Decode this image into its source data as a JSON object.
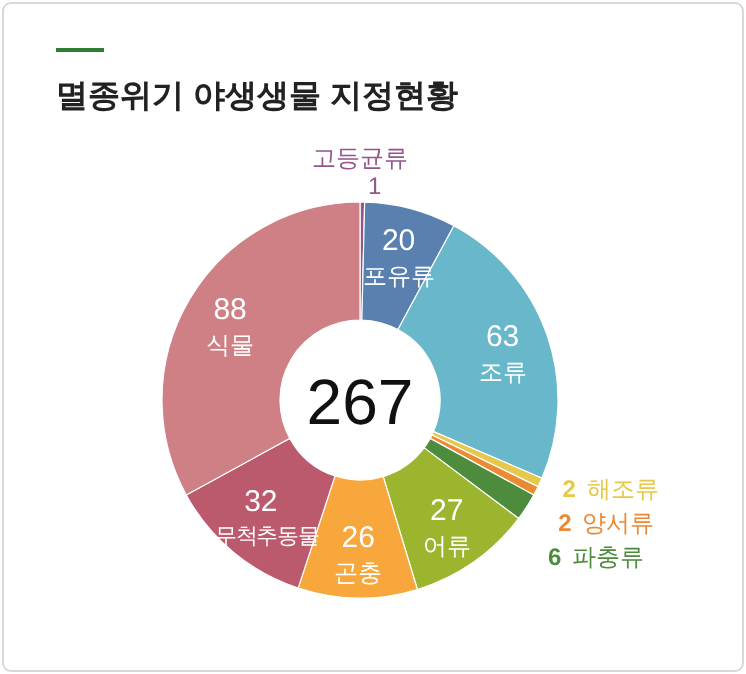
{
  "chart_data": {
    "type": "donut",
    "title": "멸종위기 야생생물 지정현황",
    "categories": [
      "고등균류",
      "포유류",
      "조류",
      "해조류",
      "양서류",
      "파충류",
      "어류",
      "곤충",
      "무척추동물",
      "식물"
    ],
    "values": [
      1,
      20,
      63,
      2,
      2,
      6,
      27,
      26,
      32,
      88
    ],
    "colors": [
      "#93558a",
      "#5a80b0",
      "#68b7cb",
      "#e6c84a",
      "#ea8a32",
      "#4c8c3c",
      "#9cb52e",
      "#f8a73c",
      "#bb596d",
      "#cf8084"
    ],
    "data_labels": true,
    "annotations": [
      "267"
    ]
  }
}
